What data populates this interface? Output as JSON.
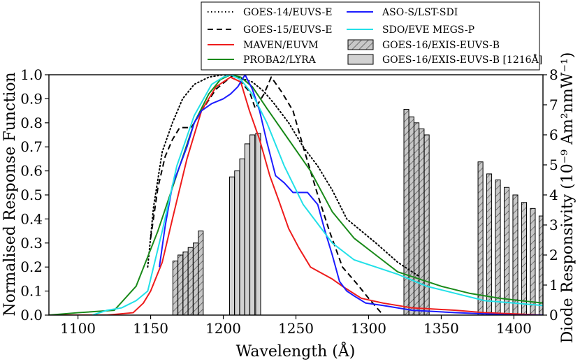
{
  "chart_data": {
    "type": "line",
    "xlabel": "Wavelength (Å)",
    "ylabel_left": "Normalised Response Function",
    "ylabel_right": "Diode Responsivity (10⁻⁹ Am²nmW⁻¹)",
    "xlim": [
      1080,
      1420
    ],
    "ylim_left": [
      0,
      1.0
    ],
    "ylim_right": [
      0,
      8
    ],
    "x_ticks": [
      1100,
      1150,
      1200,
      1250,
      1300,
      1350,
      1400
    ],
    "y_ticks_left": [
      0.0,
      0.1,
      0.2,
      0.3,
      0.4,
      0.5,
      0.6,
      0.7,
      0.8,
      0.9,
      1.0
    ],
    "y_ticks_right": [
      0,
      1,
      2,
      3,
      4,
      5,
      6,
      7,
      8
    ],
    "legend_placement": "top-right",
    "series": [
      {
        "name": "GOES-14/EUVS-E",
        "color": "#000000",
        "dash": "dotted",
        "points": [
          [
            1148,
            0.2
          ],
          [
            1152,
            0.45
          ],
          [
            1158,
            0.68
          ],
          [
            1165,
            0.8
          ],
          [
            1172,
            0.9
          ],
          [
            1180,
            0.96
          ],
          [
            1190,
            0.99
          ],
          [
            1200,
            1.0
          ],
          [
            1210,
            0.99
          ],
          [
            1220,
            0.97
          ],
          [
            1228,
            0.93
          ],
          [
            1235,
            0.88
          ],
          [
            1245,
            0.8
          ],
          [
            1255,
            0.7
          ],
          [
            1265,
            0.62
          ],
          [
            1275,
            0.52
          ],
          [
            1285,
            0.4
          ],
          [
            1295,
            0.35
          ],
          [
            1305,
            0.3
          ],
          [
            1320,
            0.22
          ],
          [
            1335,
            0.16
          ]
        ]
      },
      {
        "name": "GOES-15/EUVS-E",
        "color": "#000000",
        "dash": "dashed",
        "points": [
          [
            1150,
            0.32
          ],
          [
            1155,
            0.53
          ],
          [
            1160,
            0.66
          ],
          [
            1165,
            0.73
          ],
          [
            1170,
            0.78
          ],
          [
            1178,
            0.78
          ],
          [
            1185,
            0.85
          ],
          [
            1195,
            0.94
          ],
          [
            1205,
            0.99
          ],
          [
            1212,
            0.97
          ],
          [
            1218,
            0.93
          ],
          [
            1222,
            0.86
          ],
          [
            1228,
            0.92
          ],
          [
            1233,
            0.99
          ],
          [
            1240,
            0.93
          ],
          [
            1248,
            0.85
          ],
          [
            1255,
            0.7
          ],
          [
            1265,
            0.5
          ],
          [
            1273,
            0.35
          ],
          [
            1282,
            0.2
          ],
          [
            1292,
            0.13
          ],
          [
            1300,
            0.07
          ],
          [
            1310,
            0.0
          ]
        ]
      },
      {
        "name": "MAVEN/EUVM",
        "color": "#ee1c1c",
        "dash": "solid",
        "points": [
          [
            1080,
            0.0
          ],
          [
            1120,
            0.0
          ],
          [
            1138,
            0.01
          ],
          [
            1145,
            0.05
          ],
          [
            1150,
            0.1
          ],
          [
            1158,
            0.22
          ],
          [
            1165,
            0.4
          ],
          [
            1175,
            0.65
          ],
          [
            1185,
            0.85
          ],
          [
            1195,
            0.95
          ],
          [
            1205,
            0.99
          ],
          [
            1212,
            0.97
          ],
          [
            1218,
            0.85
          ],
          [
            1225,
            0.73
          ],
          [
            1232,
            0.58
          ],
          [
            1238,
            0.48
          ],
          [
            1245,
            0.36
          ],
          [
            1252,
            0.28
          ],
          [
            1260,
            0.2
          ],
          [
            1266,
            0.18
          ],
          [
            1275,
            0.15
          ],
          [
            1282,
            0.12
          ],
          [
            1295,
            0.07
          ],
          [
            1310,
            0.05
          ],
          [
            1330,
            0.03
          ],
          [
            1360,
            0.02
          ],
          [
            1380,
            0.01
          ],
          [
            1420,
            0.0
          ]
        ]
      },
      {
        "name": "PROBA2/LYRA",
        "color": "#1a8a1a",
        "dash": "solid",
        "points": [
          [
            1080,
            0.0
          ],
          [
            1100,
            0.01
          ],
          [
            1125,
            0.02
          ],
          [
            1140,
            0.12
          ],
          [
            1155,
            0.35
          ],
          [
            1170,
            0.62
          ],
          [
            1180,
            0.8
          ],
          [
            1190,
            0.92
          ],
          [
            1198,
            0.98
          ],
          [
            1205,
            1.0
          ],
          [
            1212,
            0.99
          ],
          [
            1220,
            0.95
          ],
          [
            1230,
            0.86
          ],
          [
            1245,
            0.73
          ],
          [
            1260,
            0.6
          ],
          [
            1275,
            0.43
          ],
          [
            1290,
            0.32
          ],
          [
            1305,
            0.25
          ],
          [
            1320,
            0.18
          ],
          [
            1335,
            0.15
          ],
          [
            1350,
            0.12
          ],
          [
            1370,
            0.09
          ],
          [
            1390,
            0.07
          ],
          [
            1405,
            0.06
          ],
          [
            1420,
            0.05
          ]
        ]
      },
      {
        "name": "ASO-S/LST-SDI",
        "color": "#1c1cff",
        "dash": "solid",
        "points": [
          [
            1156,
            0.2
          ],
          [
            1160,
            0.37
          ],
          [
            1165,
            0.54
          ],
          [
            1170,
            0.62
          ],
          [
            1175,
            0.7
          ],
          [
            1180,
            0.8
          ],
          [
            1185,
            0.85
          ],
          [
            1192,
            0.88
          ],
          [
            1200,
            0.9
          ],
          [
            1205,
            0.92
          ],
          [
            1210,
            0.95
          ],
          [
            1215,
            1.0
          ],
          [
            1220,
            0.94
          ],
          [
            1225,
            0.85
          ],
          [
            1230,
            0.72
          ],
          [
            1236,
            0.58
          ],
          [
            1242,
            0.55
          ],
          [
            1248,
            0.51
          ],
          [
            1258,
            0.51
          ],
          [
            1265,
            0.46
          ],
          [
            1270,
            0.35
          ],
          [
            1275,
            0.25
          ],
          [
            1280,
            0.14
          ],
          [
            1285,
            0.1
          ],
          [
            1290,
            0.08
          ],
          [
            1298,
            0.05
          ],
          [
            1310,
            0.04
          ],
          [
            1330,
            0.02
          ],
          [
            1360,
            0.01
          ],
          [
            1400,
            0.0
          ],
          [
            1420,
            0.0
          ]
        ]
      },
      {
        "name": "SDO/EVE MEGS-P",
        "color": "#22e0e8",
        "dash": "solid",
        "points": [
          [
            1110,
            0.0
          ],
          [
            1120,
            0.02
          ],
          [
            1130,
            0.03
          ],
          [
            1140,
            0.06
          ],
          [
            1148,
            0.1
          ],
          [
            1158,
            0.35
          ],
          [
            1168,
            0.62
          ],
          [
            1180,
            0.83
          ],
          [
            1192,
            0.96
          ],
          [
            1200,
            0.99
          ],
          [
            1205,
            1.0
          ],
          [
            1212,
            0.98
          ],
          [
            1220,
            0.92
          ],
          [
            1230,
            0.8
          ],
          [
            1242,
            0.62
          ],
          [
            1255,
            0.46
          ],
          [
            1265,
            0.38
          ],
          [
            1275,
            0.3
          ],
          [
            1290,
            0.23
          ],
          [
            1305,
            0.2
          ],
          [
            1320,
            0.17
          ],
          [
            1340,
            0.12
          ],
          [
            1360,
            0.09
          ],
          [
            1380,
            0.06
          ],
          [
            1400,
            0.05
          ],
          [
            1420,
            0.04
          ]
        ]
      }
    ],
    "bars": [
      {
        "name": "GOES-16/EXIS-EUVS-B",
        "style": "hatched",
        "fill": "#c8c8c8",
        "axis": "right",
        "bar_width_A": 3.4,
        "data": [
          [
            1167,
            1.8
          ],
          [
            1170.5,
            2.0
          ],
          [
            1174,
            2.1
          ],
          [
            1177.5,
            2.25
          ],
          [
            1181,
            2.4
          ],
          [
            1184.5,
            2.8
          ],
          [
            1326,
            6.85
          ],
          [
            1329.5,
            6.6
          ],
          [
            1333,
            6.4
          ],
          [
            1336.5,
            6.2
          ],
          [
            1340,
            6.0
          ],
          [
            1377,
            5.1
          ],
          [
            1383,
            4.7
          ],
          [
            1389,
            4.5
          ],
          [
            1395,
            4.25
          ],
          [
            1401,
            4.0
          ],
          [
            1407,
            3.75
          ],
          [
            1413,
            3.55
          ],
          [
            1419,
            3.3
          ]
        ]
      },
      {
        "name": "GOES-16/EXIS-EUVS-B [1216Å]",
        "style": "solid",
        "fill": "#d2d2d2",
        "axis": "right",
        "bar_width_A": 3.4,
        "data": [
          [
            1206,
            4.6
          ],
          [
            1209.5,
            4.8
          ],
          [
            1213,
            5.2
          ],
          [
            1216.5,
            5.7
          ],
          [
            1220,
            6.0
          ],
          [
            1224,
            6.05
          ]
        ]
      }
    ]
  }
}
